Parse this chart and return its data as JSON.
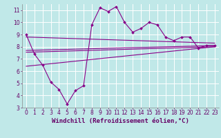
{
  "background_color": "#c0e8e8",
  "grid_color": "#b0d8d8",
  "line_color": "#880088",
  "xlabel": "Windchill (Refroidissement éolien,°C)",
  "xlim": [
    -0.5,
    23.5
  ],
  "ylim": [
    3,
    11.5
  ],
  "xticks": [
    0,
    1,
    2,
    3,
    4,
    5,
    6,
    7,
    8,
    9,
    10,
    11,
    12,
    13,
    14,
    15,
    16,
    17,
    18,
    19,
    20,
    21,
    22,
    23
  ],
  "yticks": [
    3,
    4,
    5,
    6,
    7,
    8,
    9,
    10,
    11
  ],
  "series1_x": [
    0,
    1,
    2,
    3,
    4,
    5,
    6,
    7,
    8,
    9,
    10,
    11,
    12,
    13,
    14,
    15,
    16,
    17,
    18,
    19,
    20,
    21,
    22,
    23
  ],
  "series1_y": [
    9.0,
    7.4,
    6.5,
    5.1,
    4.5,
    3.3,
    4.4,
    4.8,
    9.8,
    11.2,
    10.9,
    11.3,
    10.0,
    9.2,
    9.5,
    10.0,
    9.8,
    8.8,
    8.5,
    8.8,
    8.8,
    7.9,
    8.1,
    8.1
  ],
  "series2_x": [
    0,
    23
  ],
  "series2_y": [
    8.8,
    8.3
  ],
  "series3_x": [
    0,
    23
  ],
  "series3_y": [
    7.7,
    8.1
  ],
  "series4_x": [
    0,
    23
  ],
  "series4_y": [
    7.55,
    8.0
  ],
  "series5_x": [
    0,
    23
  ],
  "series5_y": [
    6.4,
    8.0
  ],
  "font_color": "#660066",
  "tick_fontsize": 5.5,
  "label_fontsize": 6.5
}
